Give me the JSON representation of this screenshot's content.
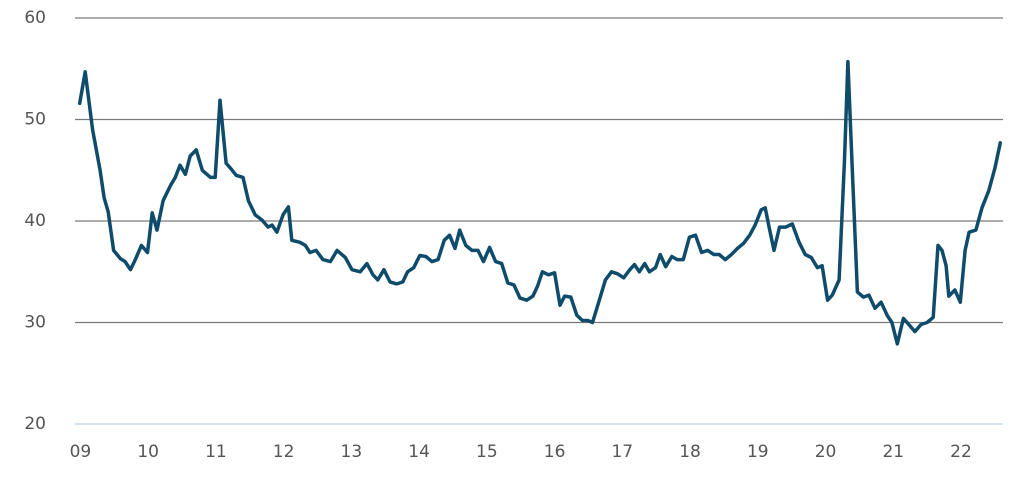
{
  "chart_data": {
    "type": "line",
    "x": [
      8.99,
      9.07,
      9.18,
      9.29,
      9.35,
      9.41,
      9.49,
      9.59,
      9.66,
      9.74,
      9.81,
      9.9,
      9.99,
      10.06,
      10.13,
      10.22,
      10.33,
      10.4,
      10.47,
      10.55,
      10.62,
      10.71,
      10.8,
      10.92,
      10.99,
      11.06,
      11.15,
      11.24,
      11.3,
      11.4,
      11.48,
      11.58,
      11.68,
      11.77,
      11.83,
      11.9,
      11.99,
      12.07,
      12.12,
      12.24,
      12.32,
      12.39,
      12.48,
      12.58,
      12.69,
      12.79,
      12.91,
      13.01,
      13.13,
      13.23,
      13.32,
      13.39,
      13.48,
      13.57,
      13.67,
      13.76,
      13.83,
      13.92,
      14.01,
      14.1,
      14.19,
      14.28,
      14.37,
      14.45,
      14.53,
      14.6,
      14.69,
      14.78,
      14.87,
      14.95,
      15.04,
      15.13,
      15.22,
      15.31,
      15.4,
      15.49,
      15.59,
      15.68,
      15.75,
      15.82,
      15.91,
      16,
      16.08,
      16.15,
      16.24,
      16.33,
      16.41,
      16.49,
      16.56,
      16.66,
      16.75,
      16.84,
      16.93,
      17.02,
      17.11,
      17.18,
      17.25,
      17.33,
      17.4,
      17.49,
      17.56,
      17.64,
      17.73,
      17.81,
      17.9,
      17.99,
      18.08,
      18.17,
      18.26,
      18.35,
      18.43,
      18.52,
      18.61,
      18.7,
      18.79,
      18.88,
      18.96,
      19.05,
      19.11,
      19.17,
      19.24,
      19.32,
      19.41,
      19.51,
      19.61,
      19.7,
      19.79,
      19.88,
      19.95,
      20.03,
      20.1,
      20.2,
      20.28,
      20.33,
      20.39,
      20.47,
      20.56,
      20.64,
      20.73,
      20.82,
      20.91,
      20.98,
      21.06,
      21.15,
      21.23,
      21.32,
      21.41,
      21.5,
      21.59,
      21.66,
      21.72,
      21.78,
      21.82,
      21.91,
      21.99,
      22.06,
      22.12,
      22.22,
      22.31,
      22.41,
      22.5,
      22.58
    ],
    "series": [
      {
        "color": "#0f4c6b",
        "values": [
          51.6,
          54.7,
          49,
          45,
          42.3,
          40.9,
          37.1,
          36.3,
          36,
          35.2,
          36.2,
          37.6,
          36.9,
          40.8,
          39.1,
          42,
          43.5,
          44.3,
          45.5,
          44.6,
          46.4,
          47,
          45,
          44.3,
          44.3,
          51.9,
          45.7,
          45,
          44.5,
          44.3,
          42,
          40.6,
          40.1,
          39.4,
          39.6,
          38.9,
          40.6,
          41.4,
          38.1,
          37.9,
          37.6,
          36.9,
          37.1,
          36.2,
          36,
          37.1,
          36.4,
          35.2,
          35,
          35.8,
          34.7,
          34.2,
          35.2,
          34,
          33.8,
          34,
          35,
          35.4,
          36.6,
          36.5,
          36,
          36.2,
          38.1,
          38.6,
          37.3,
          39.1,
          37.6,
          37.1,
          37.1,
          36,
          37.4,
          36,
          35.8,
          33.9,
          33.7,
          32.4,
          32.2,
          32.6,
          33.6,
          35,
          34.7,
          34.9,
          31.7,
          32.6,
          32.5,
          30.7,
          30.2,
          30.2,
          30,
          32.2,
          34.2,
          35,
          34.8,
          34.4,
          35.2,
          35.7,
          35,
          35.8,
          35,
          35.4,
          36.7,
          35.5,
          36.5,
          36.2,
          36.2,
          38.4,
          38.6,
          36.9,
          37.1,
          36.7,
          36.7,
          36.2,
          36.7,
          37.3,
          37.8,
          38.6,
          39.6,
          41.1,
          41.3,
          39.3,
          37.1,
          39.4,
          39.4,
          39.7,
          37.9,
          36.7,
          36.4,
          35.4,
          35.6,
          32.2,
          32.7,
          34.2,
          46,
          55.7,
          46,
          33,
          32.5,
          32.7,
          31.4,
          32,
          30.7,
          30,
          27.9,
          30.4,
          29.8,
          29.1,
          29.8,
          30,
          30.5,
          37.6,
          37.1,
          35.6,
          32.6,
          33.2,
          32,
          37.1,
          38.9,
          39.1,
          41.3,
          43,
          45.2,
          47.7
        ]
      }
    ],
    "xlim": [
      8.92,
      22.62
    ],
    "xticks": [
      {
        "value": 9,
        "label": "09"
      },
      10,
      11,
      12,
      13,
      14,
      15,
      16,
      17,
      18,
      19,
      20,
      21,
      22
    ],
    "ylim": [
      20,
      60
    ],
    "yticks": [
      20,
      30,
      40,
      50,
      60
    ],
    "grid": true
  }
}
